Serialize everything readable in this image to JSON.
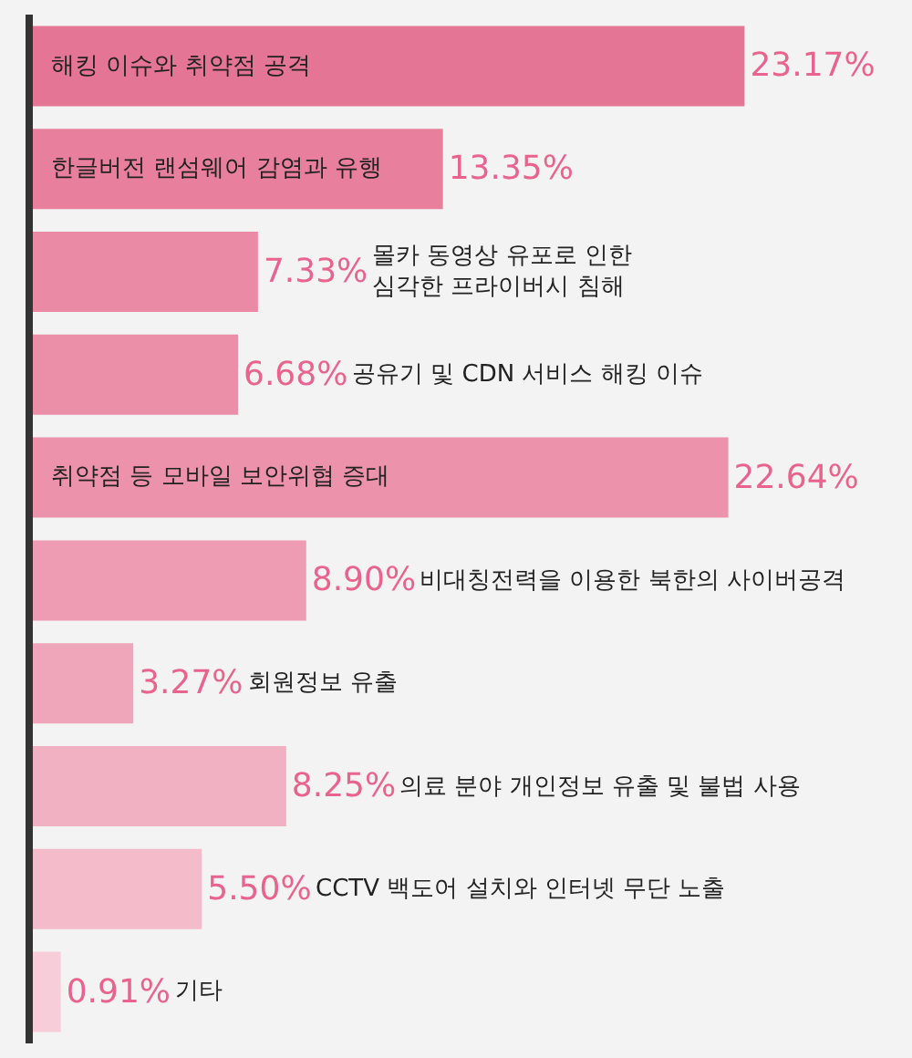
{
  "chart_data": {
    "type": "bar",
    "orientation": "horizontal",
    "categories": [
      "해킹 이슈와 취약점 공격",
      "한글버전 랜섬웨어 감염과 유행",
      "몰카 동영상 유포로 인한 심각한 프라이버시 침해",
      "공유기 및 CDN 서비스 해킹 이슈",
      "취약점 등 모바일 보안위협 증대",
      "비대칭전력을 이용한 북한의 사이버공격",
      "회원정보 유출",
      "의료 분야 개인정보 유출 및 불법 사용",
      "CCTV 백도어 설치와 인터넷 무단 노출",
      "기타"
    ],
    "values": [
      23.17,
      13.35,
      7.33,
      6.68,
      22.64,
      8.9,
      3.27,
      8.25,
      5.5,
      0.91
    ],
    "value_labels": [
      "23.17%",
      "13.35%",
      "7.33%",
      "6.68%",
      "22.64%",
      "8.90%",
      "3.27%",
      "8.25%",
      "5.50%",
      "0.91%"
    ],
    "colors": [
      "#e57595",
      "#e87f9d",
      "#ea8aa5",
      "#eb8ea8",
      "#ec92ab",
      "#ee9cb3",
      "#f0a6ba",
      "#f2b1c2",
      "#f4bccb",
      "#f6cdd8"
    ]
  }
}
